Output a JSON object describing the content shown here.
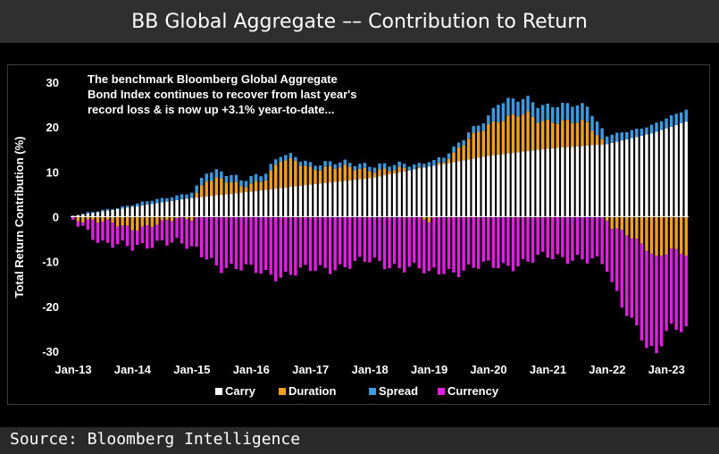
{
  "title": "BB Global Aggregate –– Contribution to Return",
  "source": "Source: Bloomberg Intelligence",
  "chart_data": {
    "type": "stacked-bar",
    "title": "BB Global Aggregate –– Contribution to Return",
    "ylabel": "Total Return Contribution (%)",
    "xlabel": "",
    "ylim": [
      -30,
      30
    ],
    "yticks": [
      30,
      20,
      10,
      0,
      -10,
      -20,
      -30
    ],
    "grid": false,
    "legend_position": "bottom",
    "annotation": [
      "The benchmark Bloomberg Global Aggregate",
      "Bond Index continues to recover from last year's",
      "record loss & is now up +3.1% year-to-date..."
    ],
    "x_start": "2013-01",
    "x_tick_labels": [
      "Jan-13",
      "Jan-14",
      "Jan-15",
      "Jan-16",
      "Jan-17",
      "Jan-18",
      "Jan-19",
      "Jan-20",
      "Jan-21",
      "Jan-22",
      "Jan-23"
    ],
    "series": [
      {
        "name": "Carry",
        "color": "#ffffff",
        "anchors": [
          [
            0,
            0.2
          ],
          [
            12,
            2.2
          ],
          [
            24,
            4.2
          ],
          [
            36,
            5.6
          ],
          [
            48,
            7.2
          ],
          [
            60,
            8.6
          ],
          [
            72,
            11.2
          ],
          [
            84,
            13.6
          ],
          [
            96,
            15.2
          ],
          [
            108,
            16.2
          ],
          [
            117,
            18.6
          ],
          [
            124,
            21.2
          ]
        ]
      },
      {
        "name": "Duration",
        "color": "#f0a020",
        "anchors": [
          [
            0,
            -0.3
          ],
          [
            6,
            -1.2
          ],
          [
            12,
            -2.6
          ],
          [
            18,
            -1.5
          ],
          [
            21,
            -0.5
          ],
          [
            24,
            -0.2
          ],
          [
            27,
            3.8
          ],
          [
            30,
            3.2
          ],
          [
            34,
            1.5
          ],
          [
            39,
            2.6
          ],
          [
            42,
            6.0
          ],
          [
            45,
            5.5
          ],
          [
            48,
            3.8
          ],
          [
            54,
            3.0
          ],
          [
            60,
            2.0
          ],
          [
            66,
            0.5
          ],
          [
            72,
            -0.5
          ],
          [
            77,
            1.5
          ],
          [
            80,
            4.5
          ],
          [
            84,
            7.2
          ],
          [
            88,
            8.0
          ],
          [
            92,
            8.2
          ],
          [
            94,
            6.6
          ],
          [
            98,
            6.0
          ],
          [
            102,
            5.2
          ],
          [
            104,
            5.0
          ],
          [
            107,
            1.0
          ],
          [
            109,
            -2.0
          ],
          [
            112,
            -4.0
          ],
          [
            115,
            -6.5
          ],
          [
            118,
            -9.0
          ],
          [
            121,
            -7.0
          ],
          [
            124,
            -8.5
          ]
        ]
      },
      {
        "name": "Spread",
        "color": "#3b9ae0",
        "anchors": [
          [
            0,
            0.0
          ],
          [
            12,
            0.5
          ],
          [
            24,
            1.2
          ],
          [
            27,
            1.8
          ],
          [
            30,
            1.6
          ],
          [
            36,
            1.5
          ],
          [
            42,
            1.2
          ],
          [
            48,
            1.0
          ],
          [
            60,
            1.1
          ],
          [
            72,
            1.0
          ],
          [
            78,
            1.2
          ],
          [
            84,
            1.8
          ],
          [
            86,
            4.0
          ],
          [
            90,
            3.4
          ],
          [
            96,
            3.5
          ],
          [
            102,
            3.8
          ],
          [
            105,
            3.5
          ],
          [
            108,
            1.8
          ],
          [
            112,
            1.7
          ],
          [
            116,
            1.8
          ],
          [
            120,
            2.2
          ],
          [
            124,
            2.6
          ]
        ]
      },
      {
        "name": "Currency",
        "color": "#e020e0",
        "anchors": [
          [
            0,
            -0.5
          ],
          [
            6,
            -4.5
          ],
          [
            12,
            -4.5
          ],
          [
            18,
            -3.8
          ],
          [
            24,
            -7.0
          ],
          [
            30,
            -11.0
          ],
          [
            36,
            -12.0
          ],
          [
            42,
            -13.0
          ],
          [
            48,
            -12.0
          ],
          [
            54,
            -11.0
          ],
          [
            60,
            -10.0
          ],
          [
            66,
            -11.0
          ],
          [
            72,
            -12.0
          ],
          [
            78,
            -12.0
          ],
          [
            84,
            -11.0
          ],
          [
            90,
            -10.5
          ],
          [
            96,
            -9.0
          ],
          [
            102,
            -9.0
          ],
          [
            108,
            -11.0
          ],
          [
            111,
            -16.0
          ],
          [
            114,
            -19.0
          ],
          [
            116,
            -22.0
          ],
          [
            118,
            -22.0
          ],
          [
            120,
            -18.0
          ],
          [
            124,
            -16.0
          ]
        ]
      }
    ]
  },
  "legend": [
    {
      "name": "Carry",
      "color": "#ffffff"
    },
    {
      "name": "Duration",
      "color": "#f0a020"
    },
    {
      "name": "Spread",
      "color": "#3b9ae0"
    },
    {
      "name": "Currency",
      "color": "#e020e0"
    }
  ]
}
